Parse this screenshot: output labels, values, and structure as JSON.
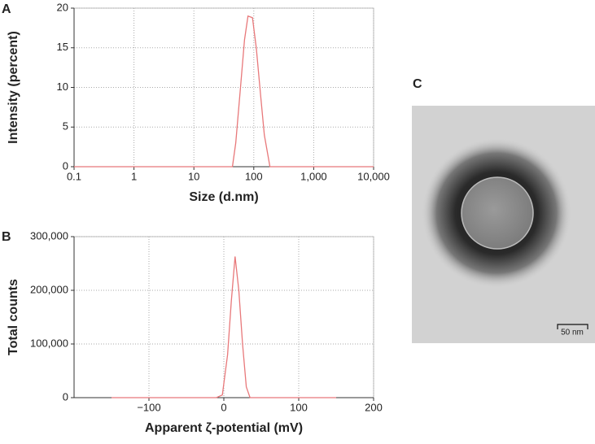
{
  "chart_data": [
    {
      "type": "line",
      "xlabel": "Size (d.nm)",
      "ylabel": "Intensity (percent)",
      "xscale": "log",
      "color": "#e8787a",
      "grid": true,
      "x": [
        0.1,
        44,
        50,
        60,
        70,
        80,
        95,
        110,
        130,
        150,
        186,
        10000
      ],
      "values": [
        0,
        0,
        3,
        10,
        16,
        19,
        18.8,
        15,
        9,
        4,
        0,
        0
      ],
      "xlim": [
        0.1,
        10000
      ],
      "xticks": [
        0.1,
        1,
        10,
        100,
        {
          "value": 1000,
          "label": "1,000"
        },
        {
          "value": 10000,
          "label": "10,000"
        }
      ],
      "ylim": [
        0,
        20
      ],
      "yticks": [
        0,
        5,
        10,
        15,
        20
      ]
    },
    {
      "type": "line",
      "xlabel": "Apparent ζ-potential (mV)",
      "ylabel": "Total counts",
      "xscale": "linear",
      "color": "#e8787a",
      "grid": true,
      "x": [
        -150,
        -10,
        -2,
        5,
        10,
        15,
        20,
        25,
        30,
        35,
        150
      ],
      "values": [
        0,
        0,
        5000,
        80000,
        180000,
        263000,
        200000,
        100000,
        20000,
        0,
        0
      ],
      "xlim": [
        -200,
        200
      ],
      "xticks": [
        {
          "value": -100,
          "label": "−100"
        },
        0,
        100,
        200
      ],
      "ylim": [
        0,
        300000
      ],
      "yticks": [
        0,
        {
          "value": 100000,
          "label": "100,000"
        },
        {
          "value": 200000,
          "label": "200,000"
        },
        {
          "value": 300000,
          "label": "300,000"
        }
      ]
    }
  ],
  "panel_labels": [
    "A",
    "B",
    "C"
  ],
  "image": {
    "scale_bar": "50 nm"
  }
}
